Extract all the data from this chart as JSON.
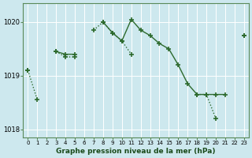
{
  "xlabel": "Graphe pression niveau de la mer (hPa)",
  "background_color": "#cde8ee",
  "grid_color": "#b0d4da",
  "line_color": "#2d6a2d",
  "x_values": [
    0,
    1,
    2,
    3,
    4,
    5,
    6,
    7,
    8,
    9,
    10,
    11,
    12,
    13,
    14,
    15,
    16,
    17,
    18,
    19,
    20,
    21,
    22,
    23
  ],
  "solid_line": [
    1019.1,
    null,
    null,
    1019.45,
    1019.4,
    1019.4,
    null,
    null,
    1020.0,
    1019.8,
    1019.65,
    1020.05,
    1019.85,
    1019.75,
    1019.6,
    1019.5,
    1019.2,
    1018.85,
    1018.65,
    1018.65,
    1018.65,
    1018.65,
    null,
    1019.75
  ],
  "dotted_line": [
    1019.1,
    1018.55,
    null,
    1019.45,
    1019.35,
    1019.35,
    null,
    1019.85,
    1020.0,
    1019.8,
    1019.65,
    1019.4,
    null,
    null,
    null,
    null,
    null,
    null,
    1018.65,
    1018.65,
    1018.2,
    null,
    null,
    1019.75
  ],
  "ylim": [
    1017.85,
    1020.35
  ],
  "yticks": [
    1018,
    1019,
    1020
  ],
  "xticks": [
    0,
    1,
    2,
    3,
    4,
    5,
    6,
    7,
    8,
    9,
    10,
    11,
    12,
    13,
    14,
    15,
    16,
    17,
    18,
    19,
    20,
    21,
    22,
    23
  ]
}
